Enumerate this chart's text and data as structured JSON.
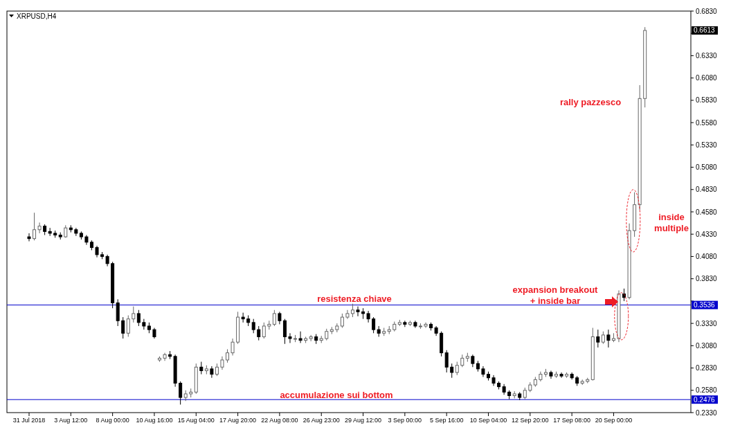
{
  "chart_data": {
    "type": "candlestick",
    "title": "XRPUSD,H4",
    "categories": [
      "31 Jul 2018",
      null,
      null,
      null,
      null,
      null,
      null,
      null,
      "3 Aug 12:00",
      null,
      null,
      null,
      null,
      null,
      null,
      null,
      "8 Aug 00:00",
      null,
      null,
      null,
      null,
      null,
      null,
      null,
      "10 Aug 16:00",
      null,
      null,
      null,
      null,
      null,
      null,
      null,
      "15 Aug 04:00",
      null,
      null,
      null,
      null,
      null,
      null,
      null,
      "17 Aug 20:00",
      null,
      null,
      null,
      null,
      null,
      null,
      null,
      "22 Aug 08:00",
      null,
      null,
      null,
      null,
      null,
      null,
      null,
      "26 Aug 23:00",
      null,
      null,
      null,
      null,
      null,
      null,
      null,
      "29 Aug 12:00",
      null,
      null,
      null,
      null,
      null,
      null,
      null,
      "3 Sep 00:00",
      null,
      null,
      null,
      null,
      null,
      null,
      null,
      "5 Sep 16:00",
      null,
      null,
      null,
      null,
      null,
      null,
      null,
      "10 Sep 04:00",
      null,
      null,
      null,
      null,
      null,
      null,
      null,
      "12 Sep 20:00",
      null,
      null,
      null,
      null,
      null,
      null,
      null,
      "17 Sep 08:00",
      null,
      null,
      null,
      null,
      null,
      null,
      null,
      "20 Sep 00:00",
      null,
      null,
      null,
      null,
      null,
      null,
      null,
      null,
      null,
      null,
      null,
      null,
      null,
      null
    ],
    "ohlc": [
      [
        0.43,
        0.434,
        0.425,
        0.428
      ],
      [
        0.428,
        0.457,
        0.426,
        0.438
      ],
      [
        0.438,
        0.446,
        0.434,
        0.442
      ],
      [
        0.442,
        0.444,
        0.432,
        0.436
      ],
      [
        0.436,
        0.44,
        0.431,
        0.434
      ],
      [
        0.434,
        0.437,
        0.429,
        0.432
      ],
      [
        0.432,
        0.435,
        0.427,
        0.43
      ],
      [
        0.43,
        0.443,
        0.429,
        0.44
      ],
      [
        0.44,
        0.443,
        0.435,
        0.438
      ],
      [
        0.438,
        0.44,
        0.431,
        0.434
      ],
      [
        0.434,
        0.436,
        0.427,
        0.43
      ],
      [
        0.43,
        0.432,
        0.421,
        0.424
      ],
      [
        0.424,
        0.426,
        0.415,
        0.418
      ],
      [
        0.418,
        0.42,
        0.407,
        0.41
      ],
      [
        0.41,
        0.413,
        0.405,
        0.408
      ],
      [
        0.408,
        0.41,
        0.397,
        0.4
      ],
      [
        0.4,
        0.402,
        0.35,
        0.356
      ],
      [
        0.356,
        0.36,
        0.33,
        0.336
      ],
      [
        0.336,
        0.34,
        0.316,
        0.322
      ],
      [
        0.322,
        0.342,
        0.318,
        0.338
      ],
      [
        0.338,
        0.352,
        0.334,
        0.344
      ],
      [
        0.344,
        0.348,
        0.33,
        0.334
      ],
      [
        0.334,
        0.338,
        0.326,
        0.33
      ],
      [
        0.33,
        0.334,
        0.322,
        0.326
      ],
      [
        0.326,
        0.328,
        0.316,
        0.318
      ],
      [
        0.292,
        0.296,
        0.29,
        0.294
      ],
      [
        0.294,
        0.3,
        0.291,
        0.298
      ],
      [
        0.298,
        0.302,
        0.293,
        0.296
      ],
      [
        0.296,
        0.298,
        0.262,
        0.266
      ],
      [
        0.266,
        0.268,
        0.242,
        0.25
      ],
      [
        0.25,
        0.258,
        0.246,
        0.254
      ],
      [
        0.254,
        0.26,
        0.25,
        0.256
      ],
      [
        0.256,
        0.288,
        0.254,
        0.284
      ],
      [
        0.284,
        0.29,
        0.276,
        0.28
      ],
      [
        0.28,
        0.286,
        0.276,
        0.282
      ],
      [
        0.282,
        0.285,
        0.272,
        0.276
      ],
      [
        0.276,
        0.288,
        0.274,
        0.284
      ],
      [
        0.284,
        0.296,
        0.281,
        0.292
      ],
      [
        0.292,
        0.304,
        0.289,
        0.3
      ],
      [
        0.3,
        0.316,
        0.297,
        0.312
      ],
      [
        0.312,
        0.346,
        0.31,
        0.34
      ],
      [
        0.34,
        0.345,
        0.334,
        0.338
      ],
      [
        0.338,
        0.342,
        0.33,
        0.334
      ],
      [
        0.334,
        0.338,
        0.322,
        0.326
      ],
      [
        0.326,
        0.33,
        0.314,
        0.318
      ],
      [
        0.318,
        0.334,
        0.316,
        0.33
      ],
      [
        0.33,
        0.336,
        0.326,
        0.332
      ],
      [
        0.332,
        0.348,
        0.33,
        0.344
      ],
      [
        0.344,
        0.346,
        0.332,
        0.336
      ],
      [
        0.336,
        0.338,
        0.31,
        0.318
      ],
      [
        0.318,
        0.322,
        0.311,
        0.316
      ],
      [
        0.316,
        0.32,
        0.312,
        0.316
      ],
      [
        0.316,
        0.324,
        0.311,
        0.314
      ],
      [
        0.314,
        0.318,
        0.311,
        0.316
      ],
      [
        0.316,
        0.32,
        0.313,
        0.318
      ],
      [
        0.318,
        0.321,
        0.31,
        0.314
      ],
      [
        0.314,
        0.319,
        0.311,
        0.316
      ],
      [
        0.316,
        0.327,
        0.314,
        0.324
      ],
      [
        0.324,
        0.329,
        0.321,
        0.326
      ],
      [
        0.326,
        0.333,
        0.323,
        0.33
      ],
      [
        0.33,
        0.344,
        0.328,
        0.34
      ],
      [
        0.34,
        0.348,
        0.338,
        0.344
      ],
      [
        0.344,
        0.355,
        0.34,
        0.348
      ],
      [
        0.348,
        0.352,
        0.341,
        0.346
      ],
      [
        0.346,
        0.35,
        0.338,
        0.344
      ],
      [
        0.344,
        0.347,
        0.334,
        0.338
      ],
      [
        0.338,
        0.34,
        0.322,
        0.326
      ],
      [
        0.326,
        0.33,
        0.318,
        0.322
      ],
      [
        0.322,
        0.328,
        0.319,
        0.324
      ],
      [
        0.324,
        0.33,
        0.321,
        0.326
      ],
      [
        0.326,
        0.335,
        0.324,
        0.332
      ],
      [
        0.332,
        0.337,
        0.33,
        0.334
      ],
      [
        0.334,
        0.336,
        0.329,
        0.332
      ],
      [
        0.332,
        0.336,
        0.33,
        0.334
      ],
      [
        0.334,
        0.336,
        0.328,
        0.33
      ],
      [
        0.33,
        0.333,
        0.327,
        0.33
      ],
      [
        0.33,
        0.334,
        0.328,
        0.332
      ],
      [
        0.332,
        0.334,
        0.325,
        0.328
      ],
      [
        0.328,
        0.33,
        0.319,
        0.322
      ],
      [
        0.322,
        0.324,
        0.296,
        0.3
      ],
      [
        0.3,
        0.303,
        0.278,
        0.284
      ],
      [
        0.284,
        0.288,
        0.272,
        0.278
      ],
      [
        0.278,
        0.29,
        0.275,
        0.286
      ],
      [
        0.286,
        0.298,
        0.284,
        0.294
      ],
      [
        0.294,
        0.3,
        0.29,
        0.296
      ],
      [
        0.296,
        0.298,
        0.284,
        0.288
      ],
      [
        0.288,
        0.291,
        0.279,
        0.282
      ],
      [
        0.282,
        0.285,
        0.273,
        0.276
      ],
      [
        0.276,
        0.279,
        0.269,
        0.272
      ],
      [
        0.272,
        0.275,
        0.263,
        0.266
      ],
      [
        0.266,
        0.268,
        0.259,
        0.262
      ],
      [
        0.262,
        0.265,
        0.253,
        0.256
      ],
      [
        0.256,
        0.258,
        0.248,
        0.252
      ],
      [
        0.252,
        0.257,
        0.249,
        0.254
      ],
      [
        0.254,
        0.256,
        0.247,
        0.25
      ],
      [
        0.25,
        0.261,
        0.248,
        0.258
      ],
      [
        0.258,
        0.267,
        0.256,
        0.264
      ],
      [
        0.264,
        0.273,
        0.262,
        0.27
      ],
      [
        0.27,
        0.279,
        0.268,
        0.276
      ],
      [
        0.276,
        0.282,
        0.273,
        0.278
      ],
      [
        0.278,
        0.28,
        0.271,
        0.274
      ],
      [
        0.274,
        0.279,
        0.272,
        0.276
      ],
      [
        0.276,
        0.278,
        0.272,
        0.274
      ],
      [
        0.274,
        0.278,
        0.272,
        0.276
      ],
      [
        0.276,
        0.278,
        0.27,
        0.272
      ],
      [
        0.272,
        0.274,
        0.263,
        0.266
      ],
      [
        0.266,
        0.27,
        0.264,
        0.268
      ],
      [
        0.268,
        0.272,
        0.266,
        0.27
      ],
      [
        0.27,
        0.328,
        0.269,
        0.318
      ],
      [
        0.318,
        0.326,
        0.306,
        0.312
      ],
      [
        0.312,
        0.324,
        0.31,
        0.32
      ],
      [
        0.32,
        0.326,
        0.306,
        0.314
      ],
      [
        0.314,
        0.322,
        0.312,
        0.316
      ],
      [
        0.316,
        0.37,
        0.312,
        0.366
      ],
      [
        0.366,
        0.372,
        0.358,
        0.362
      ],
      [
        0.362,
        0.445,
        0.36,
        0.437
      ],
      [
        0.437,
        0.48,
        0.43,
        0.466
      ],
      [
        0.466,
        0.6,
        0.46,
        0.585
      ],
      [
        0.585,
        0.665,
        0.575,
        0.6613
      ],
      null,
      null,
      null,
      null,
      null,
      null,
      null,
      null
    ],
    "ylim": [
      0.233,
      0.683
    ],
    "yticks": [
      {
        "value": 0.233,
        "label": "0.2330"
      },
      {
        "value": 0.258,
        "label": "0.2580"
      },
      {
        "value": 0.283,
        "label": "0.2830"
      },
      {
        "value": 0.308,
        "label": "0.3080"
      },
      {
        "value": 0.333,
        "label": "0.3330"
      },
      {
        "value": 0.358,
        "label": null
      },
      {
        "value": 0.383,
        "label": "0.3830"
      },
      {
        "value": 0.408,
        "label": "0.4080"
      },
      {
        "value": 0.433,
        "label": "0.4330"
      },
      {
        "value": 0.458,
        "label": "0.4580"
      },
      {
        "value": 0.483,
        "label": "0.4830"
      },
      {
        "value": 0.508,
        "label": "0.5080"
      },
      {
        "value": 0.533,
        "label": "0.5330"
      },
      {
        "value": 0.558,
        "label": "0.5580"
      },
      {
        "value": 0.583,
        "label": "0.5830"
      },
      {
        "value": 0.608,
        "label": "0.6080"
      },
      {
        "value": 0.633,
        "label": "0.6330"
      },
      {
        "value": 0.658,
        "label": null
      },
      {
        "value": 0.683,
        "label": "0.6830"
      }
    ],
    "ref_lines": [
      {
        "axis": "y",
        "value": 0.3536,
        "label": "0.3536",
        "color": "#0000cc"
      },
      {
        "axis": "y",
        "value": 0.2476,
        "label": "0.2476",
        "color": "#0000cc"
      }
    ],
    "annotations": [
      "rally pazzesco",
      "inside multiple",
      "expansion breakout + inside bar",
      "resistenza chiave",
      "accumulazione sui bottom",
      "0.6613"
    ],
    "grid": false
  }
}
